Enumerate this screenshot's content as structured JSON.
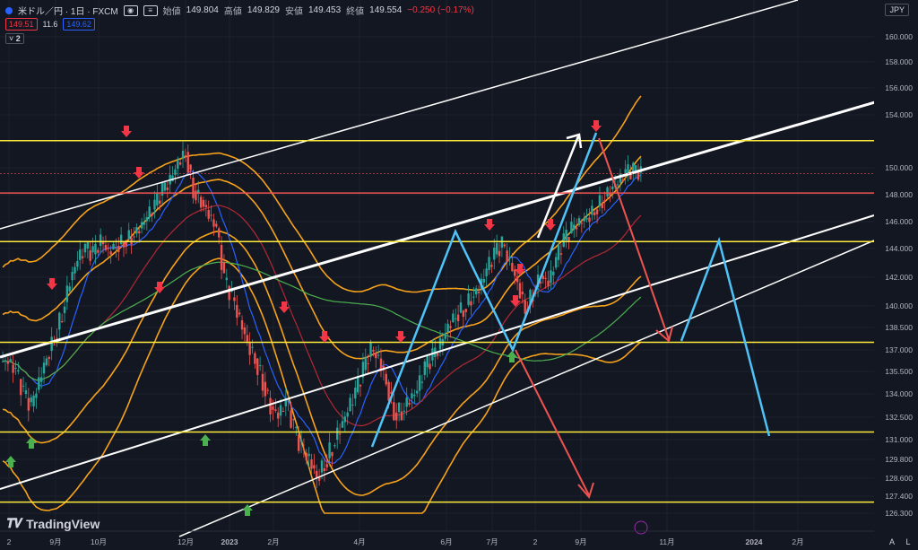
{
  "header": {
    "symbol": "米ドル／円 · 1日 · FXCM",
    "open_label": "始値",
    "open": "149.804",
    "high_label": "高値",
    "high": "149.829",
    "low_label": "安値",
    "low": "149.453",
    "close_label": "終値",
    "close": "149.554",
    "change": "−0.250 (−0.17%)"
  },
  "indicators": {
    "sell": "149.51",
    "spread": "11.6",
    "buy": "149.62",
    "count": "2"
  },
  "currency": "JPY",
  "logo": "TradingView",
  "scale_buttons": [
    "A",
    "L"
  ],
  "colors": {
    "bg": "#131722",
    "up": "#26a69a",
    "down": "#ef5350",
    "level": "#ffeb3b",
    "red_level": "#ef5350"
  },
  "chart_data": {
    "type": "candlestick",
    "symbol": "USDJPY",
    "y_ticks": [
      160.0,
      158.0,
      156.0,
      154.0,
      150.0,
      148.0,
      146.0,
      144.0,
      142.0,
      140.0,
      138.5,
      137.0,
      135.5,
      134.0,
      132.5,
      131.0,
      129.8,
      128.6,
      127.4,
      126.3
    ],
    "x_ticks": [
      "2",
      "9月",
      "10月",
      "12月",
      "2023",
      "2月",
      "4月",
      "6月",
      "7月",
      "2",
      "9月",
      "11月",
      "2024",
      "2月"
    ],
    "horizontal_levels": [
      {
        "value": "152.051",
        "color": "#ffeb3b"
      },
      {
        "value": "148.121",
        "color": "#ef5350"
      },
      {
        "value": "144.514",
        "color": "#ffeb3b"
      },
      {
        "value": "137.511",
        "color": "#ffeb3b"
      },
      {
        "value": "131.509",
        "color": "#ffeb3b"
      },
      {
        "value": "127.015",
        "color": "#ffeb3b"
      }
    ],
    "last_price": "149.554",
    "series": [
      {
        "values": [
          136.2,
          135.5,
          134.0,
          133.2,
          134.8,
          136.5,
          137.8,
          139.5,
          141.8,
          143.2,
          144.0,
          143.6,
          144.5,
          143.8,
          144.2,
          144.6,
          144.9,
          145.5,
          146.3,
          147.2,
          148.3,
          149.0,
          150.4,
          151.2,
          148.3,
          147.6,
          146.5,
          145.5,
          141.8,
          140.6,
          139.0,
          137.5,
          136.4,
          134.8,
          133.2,
          132.6,
          133.5,
          131.8,
          130.4,
          129.8,
          128.7,
          129.5,
          130.6,
          131.8,
          132.9,
          134.1,
          135.6,
          137.0,
          136.4,
          134.8,
          132.8,
          132.9,
          133.7,
          134.2,
          135.8,
          136.5,
          137.3,
          138.6,
          139.4,
          139.8,
          140.6,
          141.2,
          142.5,
          143.6,
          144.3,
          143.0,
          141.6,
          139.8,
          140.9,
          142.1,
          141.6,
          143.2,
          144.6,
          145.4,
          145.9,
          146.3,
          146.9,
          147.6,
          148.4,
          148.9,
          149.6,
          149.8,
          149.55
        ]
      }
    ]
  }
}
